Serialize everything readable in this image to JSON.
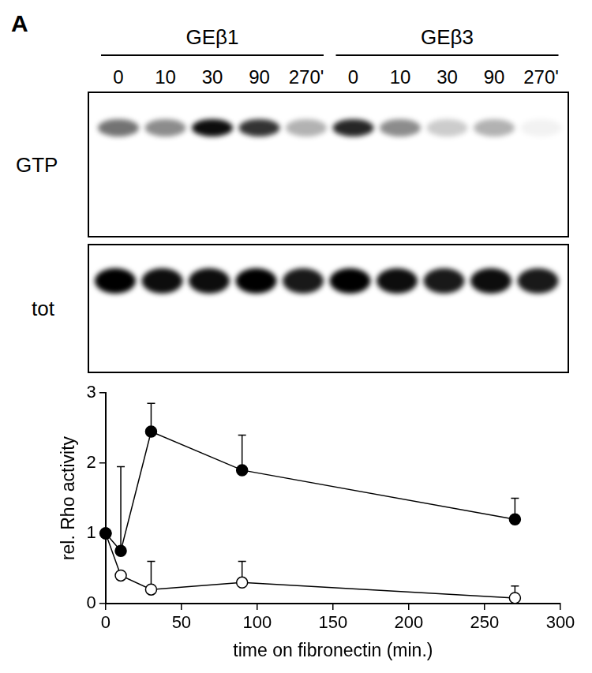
{
  "panel_label": "A",
  "blot": {
    "groups": [
      "GEβ1",
      "GEβ3"
    ],
    "lane_labels": [
      "0",
      "10",
      "30",
      "90",
      "270'",
      "0",
      "10",
      "30",
      "90",
      "270'"
    ],
    "rows": [
      {
        "label": "GTP",
        "band_intensity": [
          0.55,
          0.45,
          0.95,
          0.8,
          0.3,
          0.85,
          0.45,
          0.2,
          0.3,
          0.05
        ]
      },
      {
        "label": "tot",
        "band_intensity": [
          1,
          0.95,
          0.95,
          1,
          0.9,
          1,
          0.95,
          0.9,
          0.95,
          0.9
        ]
      }
    ]
  },
  "chart_data": {
    "type": "line",
    "x_label": "time on fibronectin (min.)",
    "y_label": "rel. Rho activity",
    "xlim": [
      0,
      300
    ],
    "xticks": [
      0,
      50,
      100,
      150,
      200,
      250,
      300
    ],
    "ylim": [
      0,
      3
    ],
    "yticks": [
      0,
      1,
      2,
      3
    ],
    "grid": false,
    "series": [
      {
        "color": "#000000",
        "marker": "filled_circle",
        "x": [
          0,
          10,
          30,
          90,
          270
        ],
        "values": [
          1,
          0.75,
          2.45,
          1.9,
          1.2
        ],
        "error_upper": [
          0,
          1.2,
          0.4,
          0.5,
          0.3
        ]
      },
      {
        "color": "#000000",
        "marker": "open_circle",
        "x": [
          0,
          10,
          30,
          90,
          270
        ],
        "values": [
          1,
          0.4,
          0.2,
          0.3,
          0.08
        ],
        "error_upper": [
          0,
          0,
          0.4,
          0.3,
          0.17
        ]
      }
    ]
  }
}
